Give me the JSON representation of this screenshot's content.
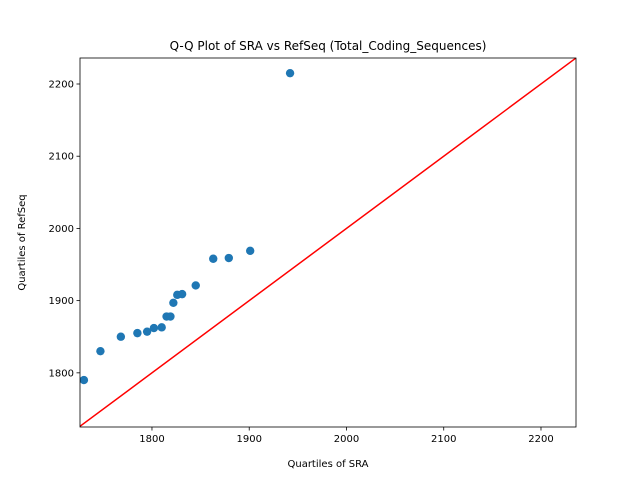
{
  "chart_data": {
    "type": "scatter",
    "title": "Q-Q Plot of SRA vs RefSeq (Total_Coding_Sequences)",
    "xlabel": "Quartiles of SRA",
    "ylabel": "Quartiles of RefSeq",
    "xlim": [
      1726,
      2236
    ],
    "ylim": [
      1725,
      2236
    ],
    "xticks": [
      1800,
      1900,
      2000,
      2100,
      2200
    ],
    "yticks": [
      1800,
      1900,
      2000,
      2100,
      2200
    ],
    "grid": false,
    "legend": "none",
    "marker_color": "#1f77b4",
    "reference_line_color": "#ff0000",
    "reference_line": "y = x",
    "points": [
      {
        "x": 1730,
        "y": 1790
      },
      {
        "x": 1747,
        "y": 1830
      },
      {
        "x": 1768,
        "y": 1850
      },
      {
        "x": 1785,
        "y": 1855
      },
      {
        "x": 1795,
        "y": 1857
      },
      {
        "x": 1802,
        "y": 1862
      },
      {
        "x": 1810,
        "y": 1863
      },
      {
        "x": 1815,
        "y": 1878
      },
      {
        "x": 1819,
        "y": 1878
      },
      {
        "x": 1822,
        "y": 1897
      },
      {
        "x": 1826,
        "y": 1908
      },
      {
        "x": 1831,
        "y": 1909
      },
      {
        "x": 1845,
        "y": 1921
      },
      {
        "x": 1863,
        "y": 1958
      },
      {
        "x": 1879,
        "y": 1959
      },
      {
        "x": 1901,
        "y": 1969
      },
      {
        "x": 1942,
        "y": 2215
      }
    ]
  }
}
